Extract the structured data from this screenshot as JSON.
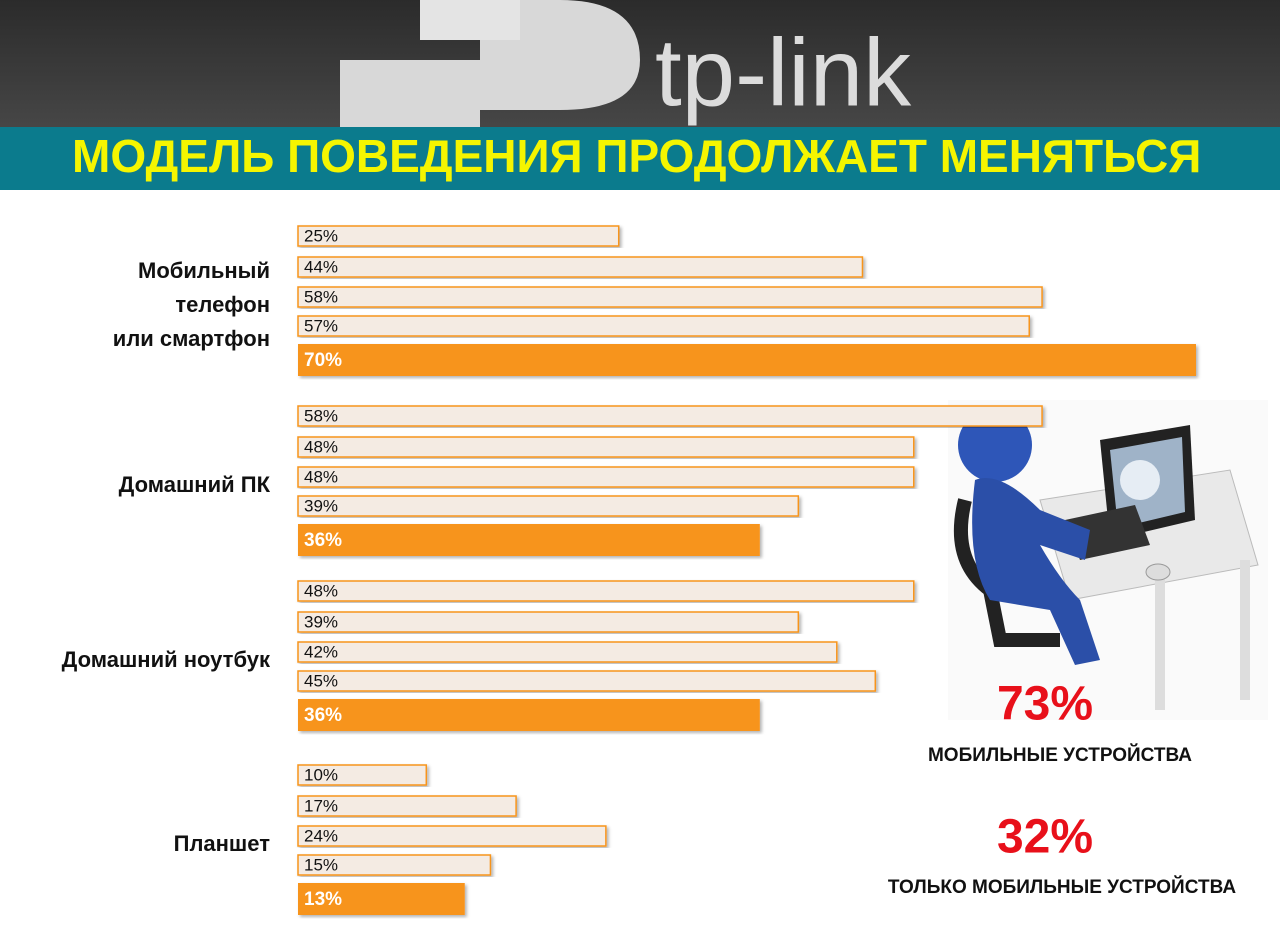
{
  "header": {
    "logo": "tp-link"
  },
  "chart_data": {
    "type": "bar",
    "title": "МОДЕЛЬ ПОВЕДЕНИЯ ПРОДОЛЖАЕТ МЕНЯТЬСЯ",
    "categories": [
      [
        "Мобильный",
        "телефон",
        "или смартфон"
      ],
      [
        "Домашний ПК"
      ],
      [
        "Домашний ноутбук"
      ],
      [
        "Планшет"
      ]
    ],
    "values": [
      [
        25,
        44,
        58,
        57,
        70
      ],
      [
        58,
        48,
        48,
        39,
        36
      ],
      [
        48,
        39,
        42,
        45,
        36
      ],
      [
        10,
        17,
        24,
        15,
        13
      ]
    ],
    "value_labels": [
      [
        "25%",
        "44%",
        "58%",
        "57%",
        "70%"
      ],
      [
        "58%",
        "48%",
        "48%",
        "39%",
        "36%"
      ],
      [
        "48%",
        "39%",
        "42%",
        "45%",
        "36%"
      ],
      [
        "10%",
        "17%",
        "24%",
        "15%",
        "13%"
      ]
    ],
    "colors": [
      "#f4ebe3",
      "#f4ebe3",
      "#f4ebe3",
      "#f4ebe3",
      "#f7941d"
    ],
    "border_color": "#f7941d",
    "annotations": [
      {
        "text": "73%",
        "label": "МОБИЛЬНЫЕ УСТРОЙСТВА"
      },
      {
        "text": "32%",
        "label": "ТОЛЬКО МОБИЛЬНЫЕ УСТРОЙСТВА"
      }
    ]
  }
}
